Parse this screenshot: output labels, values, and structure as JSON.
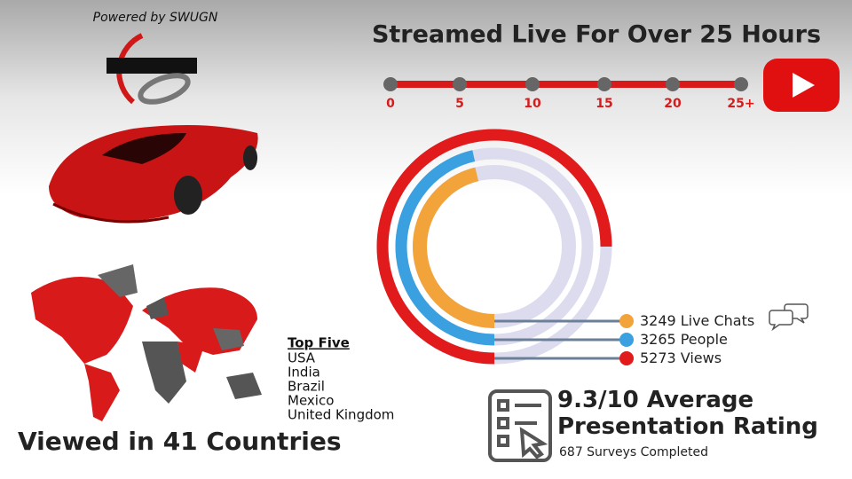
{
  "header": {
    "powered_by": "Powered by SWUGN"
  },
  "timeline": {
    "title": "Streamed Live For Over 25 Hours",
    "ticks": [
      "0",
      "5",
      "10",
      "15",
      "20",
      "25+"
    ]
  },
  "rings": {
    "items": [
      {
        "value": 3249,
        "name": "Live Chats",
        "color": "#f2a33a"
      },
      {
        "value": 3265,
        "name": "People",
        "color": "#3aa0e0"
      },
      {
        "value": 5273,
        "name": "Views",
        "color": "#e11b1b"
      }
    ]
  },
  "map": {
    "heading": "Top Five",
    "countries": [
      "USA",
      "India",
      "Brazil",
      "Mexico",
      "United Kingdom"
    ],
    "caption": "Viewed in 41 Countries"
  },
  "rating": {
    "title": "9.3/10 Average Presentation Rating",
    "subtitle": "687 Surveys Completed"
  }
}
